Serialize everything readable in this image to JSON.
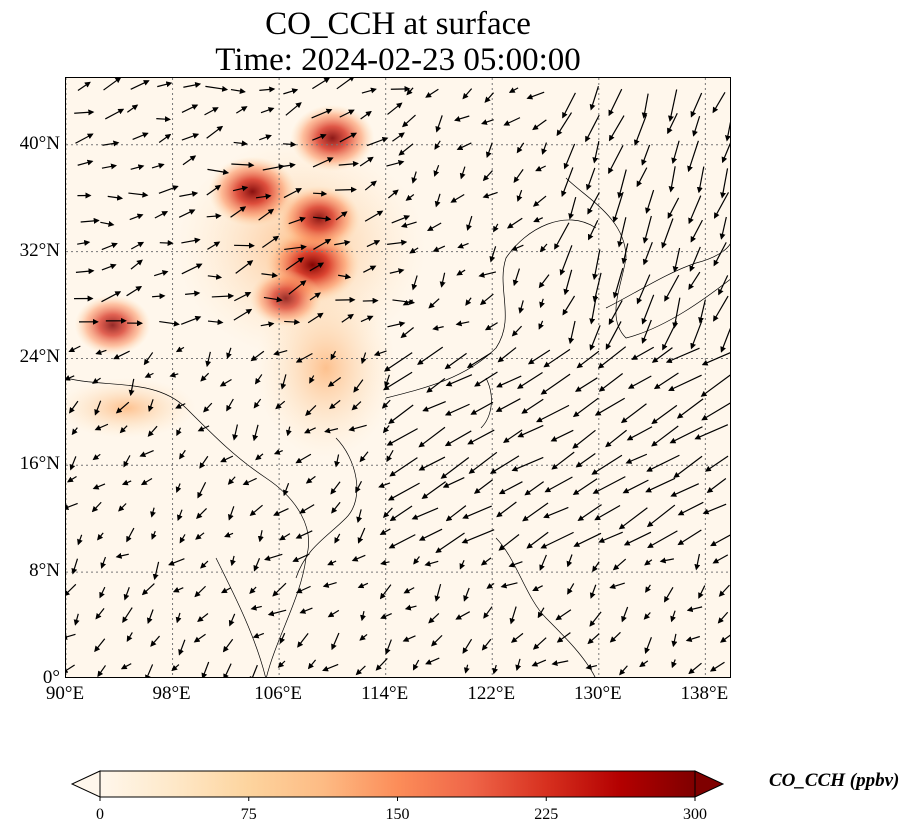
{
  "title": {
    "line1": "CO_CCH at surface",
    "line2": "Time: 2024-02-23 05:00:00"
  },
  "map": {
    "lon_range": [
      90,
      140
    ],
    "lat_range": [
      0,
      45
    ],
    "lon_ticks": [
      "90°E",
      "98°E",
      "106°E",
      "114°E",
      "122°E",
      "130°E",
      "138°E"
    ],
    "lon_tick_values": [
      90,
      98,
      106,
      114,
      122,
      130,
      138
    ],
    "lat_ticks": [
      "0°",
      "8°N",
      "16°N",
      "24°N",
      "32°N",
      "40°N"
    ],
    "lat_tick_values": [
      0,
      8,
      16,
      24,
      32,
      40
    ],
    "gridlines": "dotted",
    "background_color": "#fff7ec",
    "colormap": "OrRd",
    "high_concentration_regions": [
      {
        "lon": 108.5,
        "lat": 31.0,
        "level": 290
      },
      {
        "lon": 104.0,
        "lat": 36.5,
        "level": 260
      },
      {
        "lon": 110.0,
        "lat": 40.5,
        "level": 240
      },
      {
        "lon": 109.0,
        "lat": 34.5,
        "level": 230
      },
      {
        "lon": 93.5,
        "lat": 26.5,
        "level": 200
      },
      {
        "lon": 106.5,
        "lat": 28.5,
        "level": 180
      }
    ],
    "wind_field": "vector arrows (surface winds)"
  },
  "colorbar": {
    "label": "CO_CCH (ppbv)",
    "min": 0,
    "max": 300,
    "ticks": [
      "0",
      "75",
      "150",
      "225",
      "300"
    ],
    "extend": "both",
    "colors": [
      "#fff7ec",
      "#fee8c8",
      "#fdd49e",
      "#fdbb84",
      "#fc8d59",
      "#ef6548",
      "#d7301f",
      "#b30000",
      "#7f0000"
    ]
  }
}
